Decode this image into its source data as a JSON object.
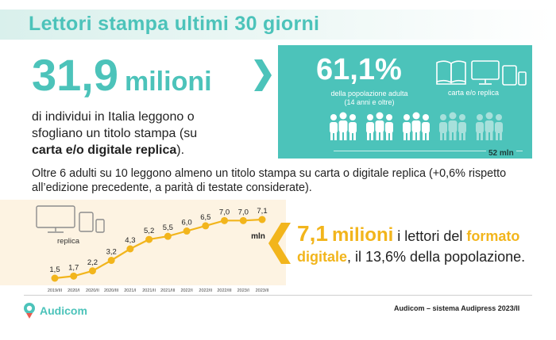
{
  "title": "Lettori  stampa ultimi 30 giorni",
  "headline": {
    "number": "31,9",
    "unit": "milioni"
  },
  "description": {
    "line_1": "di individui in Italia leggono o",
    "line_2": "sfogliano un titolo stampa (su",
    "bold": "carta e/o digitale replica",
    "end": ")."
  },
  "stat_box": {
    "percent": "61,1%",
    "percent_caption_1": "della popolazione adulta",
    "percent_caption_2": "(14 anni e oltre)",
    "devices_caption": "carta e/o replica",
    "population_label": "52 mln"
  },
  "paragraph": "Oltre 6 adulti su 10 leggono almeno un titolo stampa su carta o digitale replica (+0,6% rispetto all’edizione precedente, a parità di testate considerate).",
  "chart_data": {
    "type": "line",
    "device_label": "replica",
    "unit_label": "mln",
    "categories": [
      "2019/III",
      "2020/I",
      "2020/II",
      "2020/III",
      "2021/I",
      "2021/II",
      "2021/III",
      "2022/I",
      "2022/II",
      "2022/III",
      "2023/I",
      "2023/II"
    ],
    "values": [
      1.5,
      1.7,
      2.2,
      3.2,
      4.3,
      5.2,
      5.5,
      6.0,
      6.5,
      7.0,
      7.0,
      7.1
    ],
    "value_labels": [
      "1,5",
      "1,7",
      "2,2",
      "3,2",
      "4,3",
      "5,2",
      "5,5",
      "6,0",
      "6,5",
      "7,0",
      "7,0",
      "7,1"
    ],
    "line_color": "#f2b51c",
    "ylim": [
      1.5,
      7.1
    ]
  },
  "callout": {
    "number": "7,1",
    "unit": "milioni",
    "text_1": " i lettori del ",
    "highlight_1": "formato",
    "highlight_2": "digitale",
    "text_2": ", il 13,6% della popolazione."
  },
  "footer": {
    "brand": "Audicom",
    "source": "Audicom – sistema Audipress 2023/II"
  },
  "colors": {
    "teal": "#4cc3ba",
    "gold": "#f2b51c"
  }
}
